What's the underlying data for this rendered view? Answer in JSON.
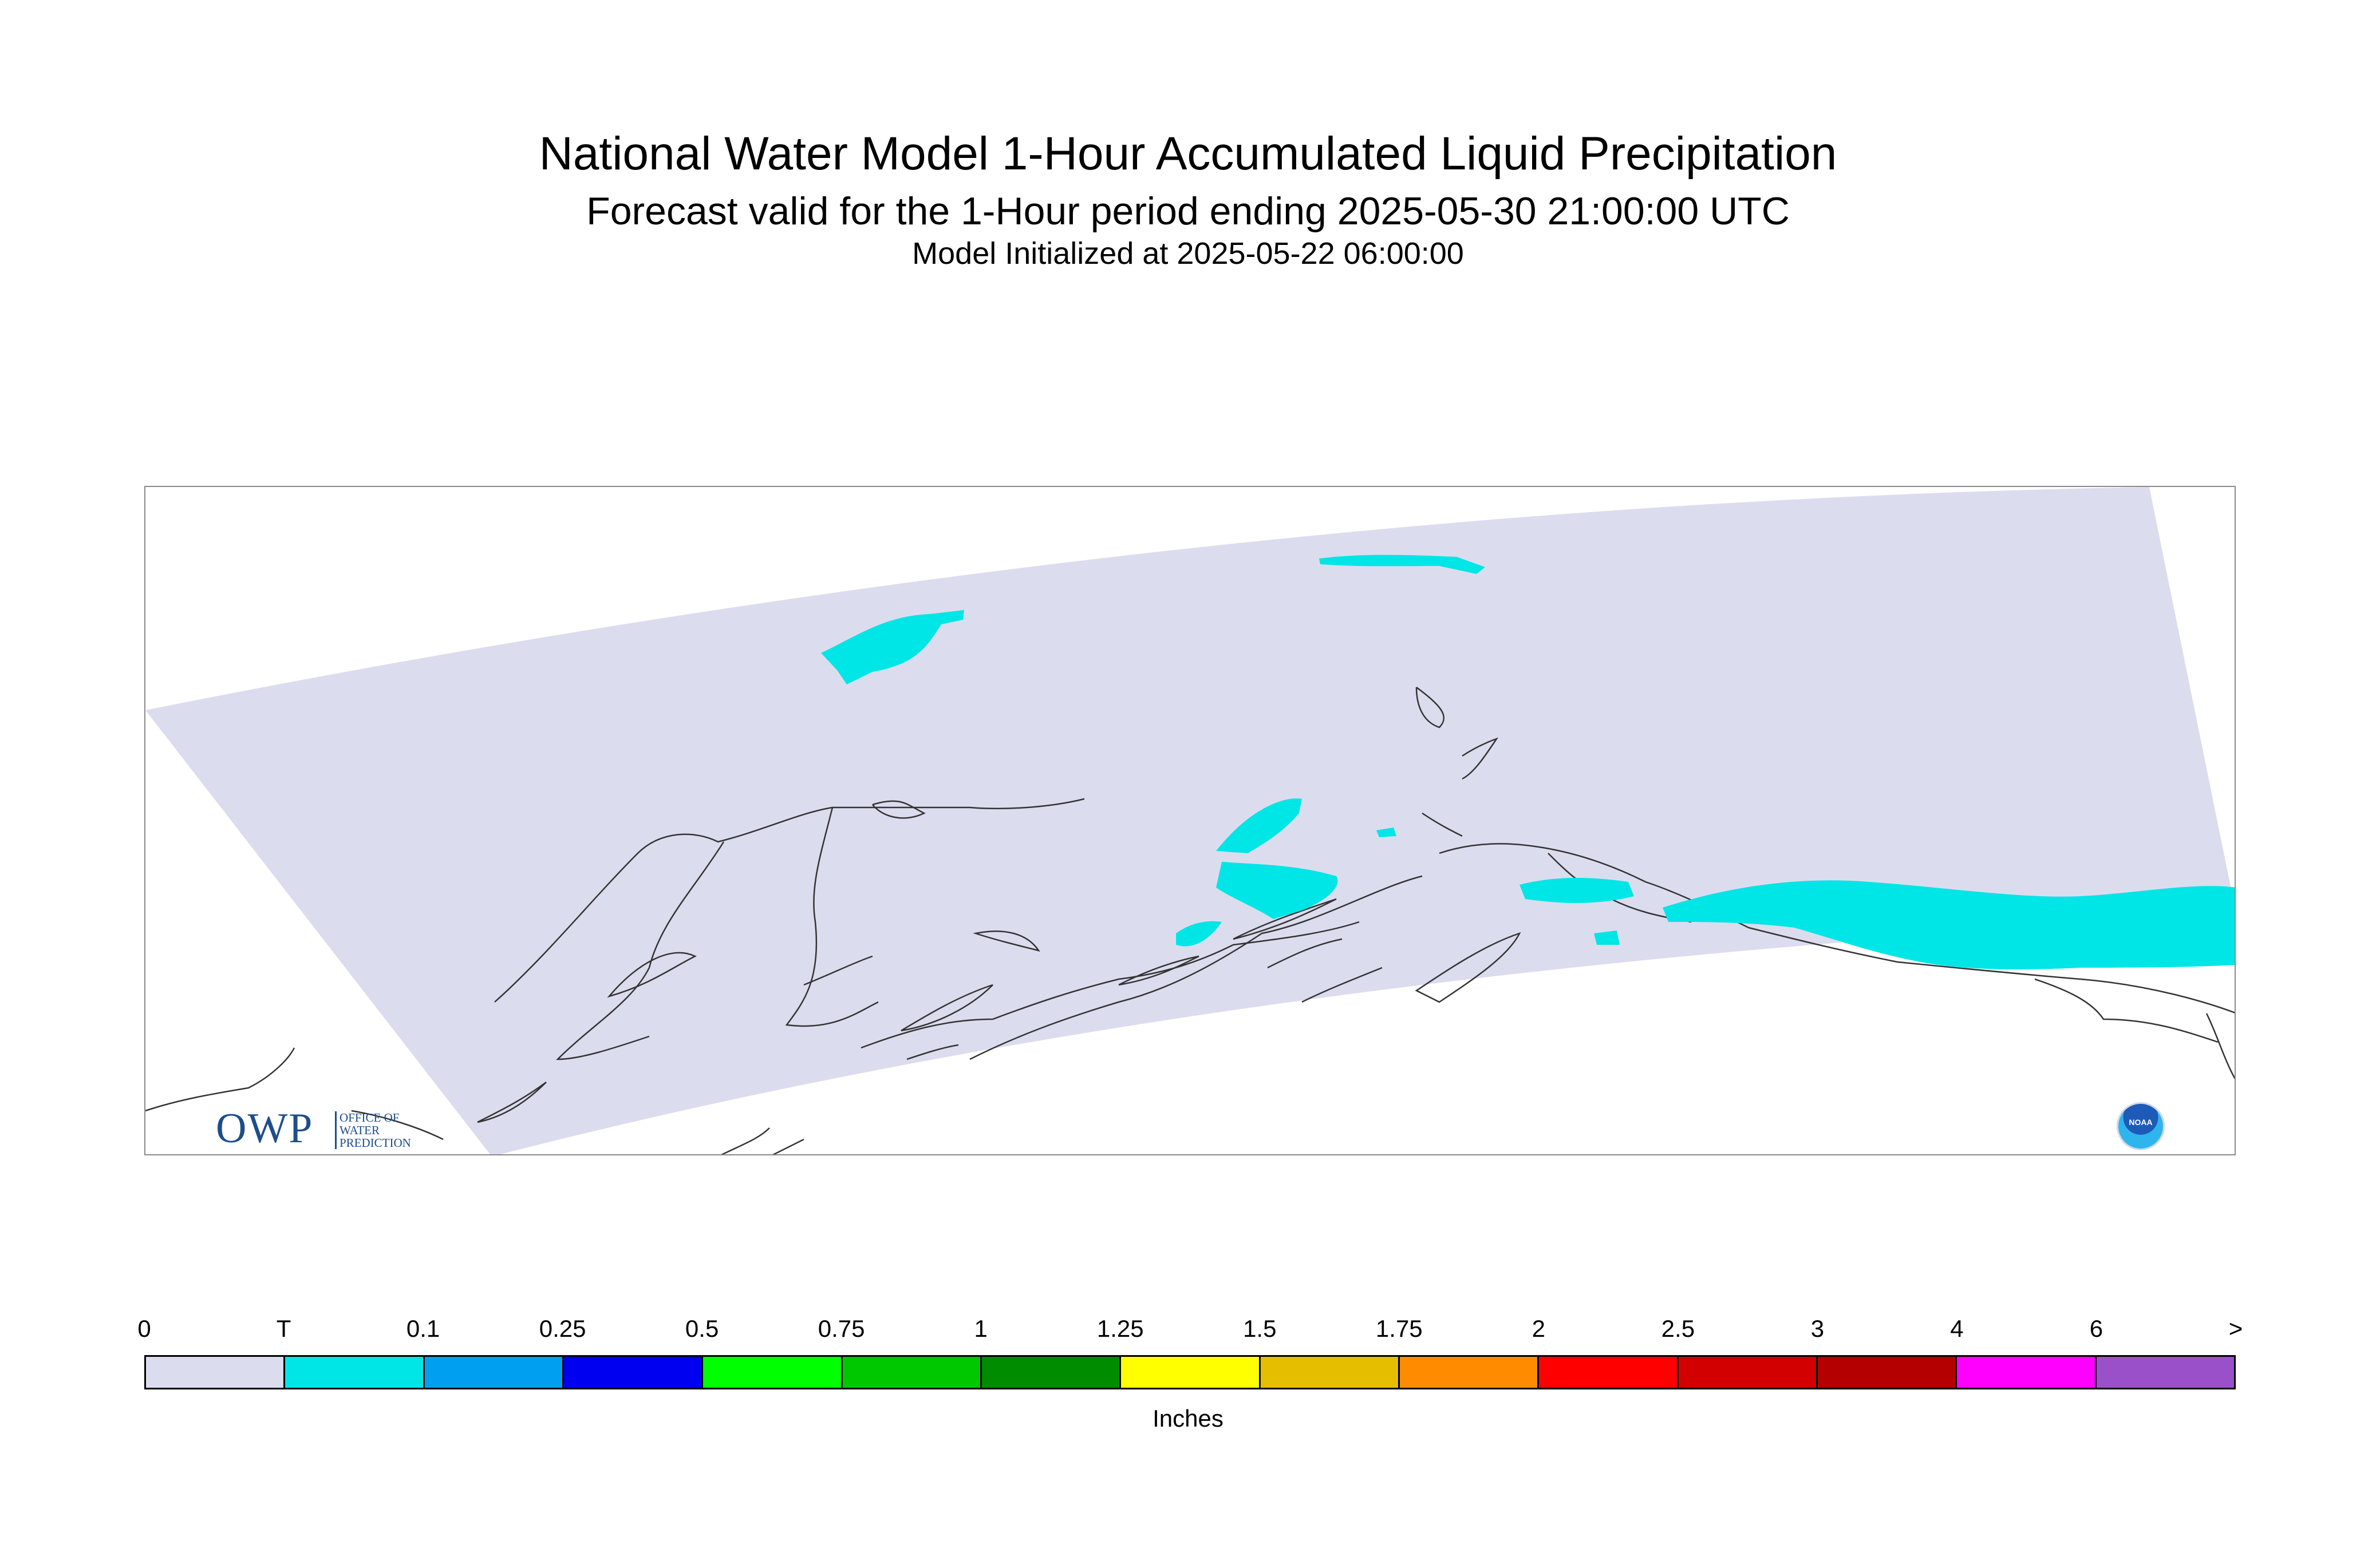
{
  "header": {
    "title": "National Water Model 1-Hour Accumulated Liquid Precipitation",
    "subtitle": "Forecast valid for the 1-Hour period ending 2025-05-30 21:00:00 UTC",
    "init": "Model Initialized at 2025-05-22 06:00:00"
  },
  "map": {
    "region": "Alaska",
    "domain_color": "#dcdcef",
    "precip_color": "#00e6e6",
    "coastline_color": "#333333"
  },
  "logos": {
    "owp_mark": "OWP",
    "owp_text": [
      "OFFICE OF",
      "WATER",
      "PREDICTION"
    ],
    "noaa_mark": "NOAA"
  },
  "legend": {
    "ticks": [
      "0",
      "T",
      "0.1",
      "0.25",
      "0.5",
      "0.75",
      "1",
      "1.25",
      "1.5",
      "1.75",
      "2",
      "2.5",
      "3",
      "4",
      "6",
      ">"
    ],
    "colors": [
      "#dcdcef",
      "#00e6e6",
      "#009ff0",
      "#0000f0",
      "#00ff00",
      "#00c800",
      "#008c00",
      "#ffff00",
      "#e6be00",
      "#ff8c00",
      "#ff0000",
      "#d20000",
      "#b40000",
      "#ff00ff",
      "#9a50c8"
    ],
    "units": "Inches"
  }
}
